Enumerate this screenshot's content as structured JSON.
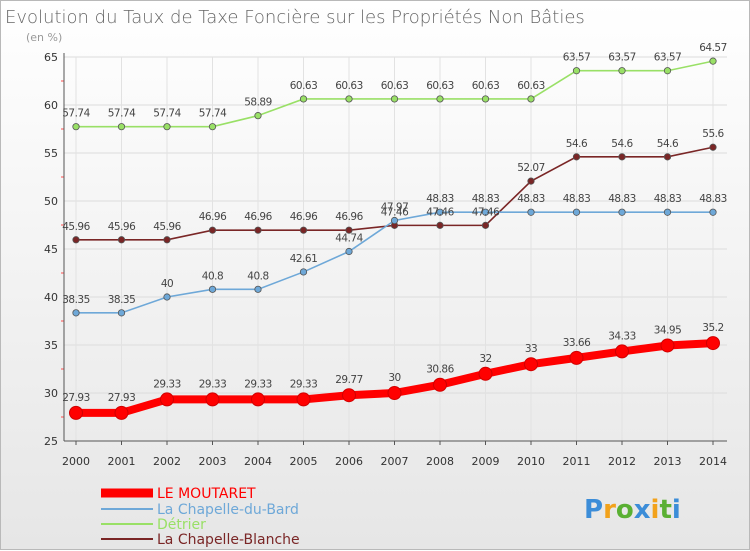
{
  "chart_data": {
    "type": "line",
    "title": "Evolution du Taux de Taxe Foncière sur les Propriétés Non Bâties",
    "subtitle": "(en %)",
    "x": [
      "2000",
      "2001",
      "2002",
      "2003",
      "2004",
      "2005",
      "2006",
      "2007",
      "2008",
      "2009",
      "2010",
      "2011",
      "2012",
      "2013",
      "2014"
    ],
    "ylim": [
      25,
      65
    ],
    "yticks": [
      25,
      30,
      35,
      40,
      45,
      50,
      55,
      60,
      65
    ],
    "grid": true,
    "legend_position": "bottom-left",
    "series": [
      {
        "name": "LE MOUTARET",
        "color": "#ff0000",
        "values": [
          27.93,
          27.93,
          29.33,
          29.33,
          29.33,
          29.33,
          29.77,
          30,
          30.86,
          32,
          33,
          33.66,
          34.33,
          34.95,
          35.2
        ],
        "labels": [
          "27.93",
          "27.93",
          "29.33",
          "29.33",
          "29.33",
          "29.33",
          "29.77",
          "30",
          "30.86",
          "32",
          "33",
          "33.66",
          "34.33",
          "34.95",
          "35.2"
        ]
      },
      {
        "name": "La Chapelle-du-Bard",
        "color": "#6ea8d8",
        "values": [
          38.35,
          38.35,
          40,
          40.8,
          40.8,
          42.61,
          44.74,
          47.97,
          48.83,
          48.83,
          48.83,
          48.83,
          48.83,
          48.83,
          48.83
        ],
        "labels": [
          "38.35",
          "38.35",
          "40",
          "40.8",
          "40.8",
          "42.61",
          "44.74",
          "47.97",
          "48.83",
          "48.83",
          "48.83",
          "48.83",
          "48.83",
          "48.83",
          "48.83"
        ]
      },
      {
        "name": "Détrier",
        "color": "#99e066",
        "values": [
          57.74,
          57.74,
          57.74,
          57.74,
          58.89,
          60.63,
          60.63,
          60.63,
          60.63,
          60.63,
          60.63,
          63.57,
          63.57,
          63.57,
          64.57
        ],
        "labels": [
          "57.74",
          "57.74",
          "57.74",
          "57.74",
          "58.89",
          "60.63",
          "60.63",
          "60.63",
          "60.63",
          "60.63",
          "60.63",
          "63.57",
          "63.57",
          "63.57",
          "64.57"
        ]
      },
      {
        "name": "La Chapelle-Blanche",
        "color": "#7a2626",
        "values": [
          45.96,
          45.96,
          45.96,
          46.96,
          46.96,
          46.96,
          46.96,
          47.46,
          47.46,
          47.46,
          52.07,
          54.6,
          54.6,
          54.6,
          55.6
        ],
        "labels": [
          "45.96",
          "45.96",
          "45.96",
          "46.96",
          "46.96",
          "46.96",
          "46.96",
          "47.46",
          "47.46",
          "47.46",
          "52.07",
          "54.6",
          "54.6",
          "54.6",
          "55.6"
        ]
      }
    ]
  },
  "legend": {
    "items": [
      {
        "name": "LE MOUTARET",
        "color": "#ff0000"
      },
      {
        "name": "La Chapelle-du-Bard",
        "color": "#6ea8d8"
      },
      {
        "name": "Détrier",
        "color": "#99e066"
      },
      {
        "name": "La Chapelle-Blanche",
        "color": "#7a2626"
      }
    ]
  },
  "logo": {
    "letters": [
      "P",
      "r",
      "o",
      "x",
      "i",
      "t",
      "i"
    ],
    "colors": [
      "#3c8dd8",
      "#f2a21b",
      "#5ab033",
      "#3c8dd8",
      "#f2a21b",
      "#5ab033",
      "#3c8dd8"
    ]
  }
}
